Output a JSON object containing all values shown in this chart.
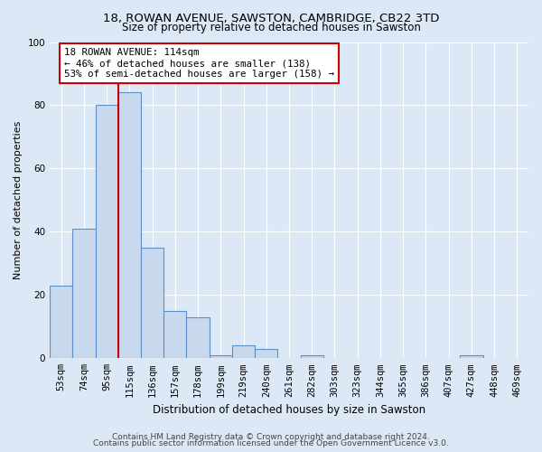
{
  "title1": "18, ROWAN AVENUE, SAWSTON, CAMBRIDGE, CB22 3TD",
  "title2": "Size of property relative to detached houses in Sawston",
  "xlabel": "Distribution of detached houses by size in Sawston",
  "ylabel": "Number of detached properties",
  "categories": [
    "53sqm",
    "74sqm",
    "95sqm",
    "115sqm",
    "136sqm",
    "157sqm",
    "178sqm",
    "199sqm",
    "219sqm",
    "240sqm",
    "261sqm",
    "282sqm",
    "303sqm",
    "323sqm",
    "344sqm",
    "365sqm",
    "386sqm",
    "407sqm",
    "427sqm",
    "448sqm",
    "469sqm"
  ],
  "values": [
    23,
    41,
    80,
    84,
    35,
    15,
    13,
    1,
    4,
    3,
    0,
    1,
    0,
    0,
    0,
    0,
    0,
    0,
    1,
    0,
    0
  ],
  "bar_color": "#c9d9ed",
  "bar_edge_color": "#5b8fc9",
  "vline_x_index": 3,
  "vline_color": "#cc0000",
  "annotation_text": "18 ROWAN AVENUE: 114sqm\n← 46% of detached houses are smaller (138)\n53% of semi-detached houses are larger (158) →",
  "annotation_box_color": "#ffffff",
  "annotation_box_edge": "#cc0000",
  "footer1": "Contains HM Land Registry data © Crown copyright and database right 2024.",
  "footer2": "Contains public sector information licensed under the Open Government Licence v3.0.",
  "ylim": [
    0,
    100
  ],
  "yticks": [
    0,
    20,
    40,
    60,
    80,
    100
  ],
  "background_color": "#dce8f5",
  "grid_color": "#ffffff",
  "title1_fontsize": 9.5,
  "title2_fontsize": 8.5,
  "xlabel_fontsize": 8.5,
  "ylabel_fontsize": 8.0,
  "tick_fontsize": 7.5,
  "footer_fontsize": 6.5
}
